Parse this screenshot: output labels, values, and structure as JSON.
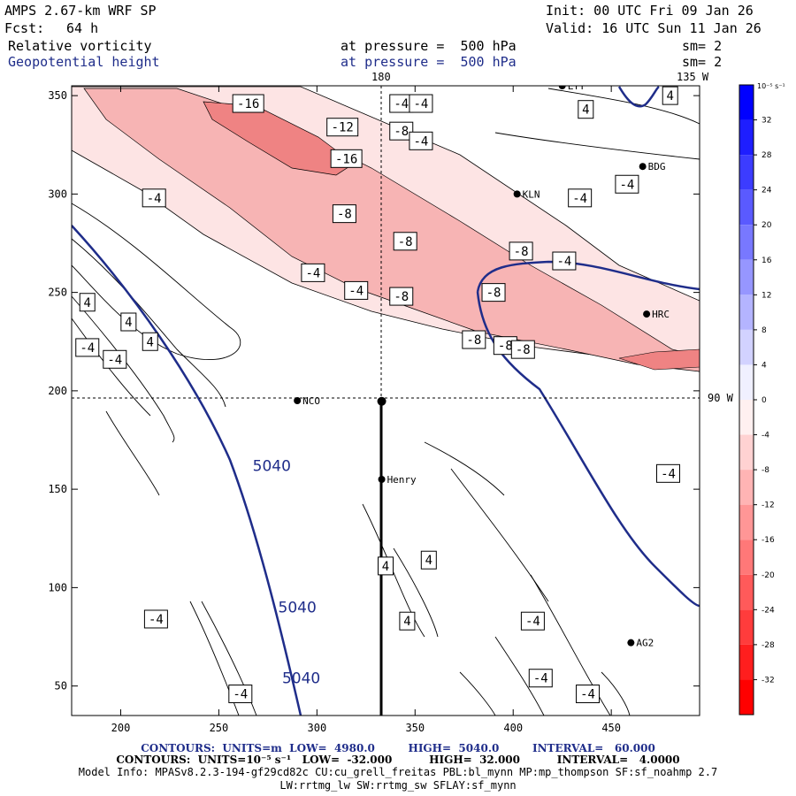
{
  "header": {
    "model": "AMPS 2.67-km WRF SP",
    "init": "Init: 00 UTC Fri 09 Jan 26",
    "fcst_label": "Fcst:",
    "fcst_value": "64 h",
    "valid": "Valid: 16 UTC Sun 11 Jan 26",
    "field1": "Relative vorticity",
    "field2": "Geopotential height",
    "level1": "at pressure =  500 hPa",
    "level2": "at pressure =  500 hPa",
    "sm1": "sm= 2",
    "sm2": "sm= 2",
    "lon_180": "180",
    "lon_135": "135 W",
    "lon_90": "90 W"
  },
  "footer": {
    "line1": "CONTOURS:  UNITS=m  LOW=  4980.0         HIGH=  5040.0         INTERVAL=   60.000",
    "line2": "CONTOURS:  UNITS=10⁻⁵ s⁻¹   LOW=  -32.000          HIGH=  32.000          INTERVAL=   4.0000",
    "line3": "Model Info: MPASv8.2.3-194-gf29cd82c CU:cu_grell_freitas PBL:bl_mynn MP:mp_thompson SF:sf_noahmp 2.7",
    "line4": "LW:rrtmg_lw SW:rrtmg_sw SFLAY:sf_mynn"
  },
  "colors": {
    "height_contour": "#1f2d8a",
    "vort_light": "#fde4e4",
    "vort_mid": "#f7b4b4",
    "vort_strong": "#ef8383"
  },
  "chart_data": {
    "type": "contour",
    "title": "Relative vorticity / Geopotential height at 500 hPa",
    "xlim": [
      175,
      495
    ],
    "ylim": [
      35,
      355
    ],
    "x_ticks": [
      "200",
      "250",
      "300",
      "350",
      "400",
      "450"
    ],
    "y_ticks": [
      "50",
      "100",
      "150",
      "200",
      "250",
      "300",
      "350"
    ],
    "height_labels": [
      {
        "text": "5040",
        "x": 277,
        "y": 162
      },
      {
        "text": "5040",
        "x": 290,
        "y": 90
      },
      {
        "text": "5040",
        "x": 292,
        "y": 54
      }
    ],
    "vort_labels": [
      {
        "text": "-16",
        "x": 265,
        "y": 346
      },
      {
        "text": "-12",
        "x": 313,
        "y": 334
      },
      {
        "text": "-16",
        "x": 315,
        "y": 318
      },
      {
        "text": "-4",
        "x": 343,
        "y": 346
      },
      {
        "text": "-4",
        "x": 353,
        "y": 346
      },
      {
        "text": "-8",
        "x": 343,
        "y": 332
      },
      {
        "text": "-4",
        "x": 353,
        "y": 327
      },
      {
        "text": "-4",
        "x": 217,
        "y": 298
      },
      {
        "text": "-8",
        "x": 314,
        "y": 290
      },
      {
        "text": "-8",
        "x": 345,
        "y": 276
      },
      {
        "text": "-8",
        "x": 404,
        "y": 271
      },
      {
        "text": "-4",
        "x": 426,
        "y": 266
      },
      {
        "text": "-4",
        "x": 298,
        "y": 260
      },
      {
        "text": "-4",
        "x": 320,
        "y": 251
      },
      {
        "text": "-8",
        "x": 343,
        "y": 248
      },
      {
        "text": "-8",
        "x": 390,
        "y": 250
      },
      {
        "text": "-8",
        "x": 380,
        "y": 226
      },
      {
        "text": "-8",
        "x": 396,
        "y": 223
      },
      {
        "text": "-8",
        "x": 405,
        "y": 221
      },
      {
        "text": "-4",
        "x": 183,
        "y": 222
      },
      {
        "text": "-4",
        "x": 197,
        "y": 216
      },
      {
        "text": "-4",
        "x": 218,
        "y": 84
      },
      {
        "text": "-4",
        "x": 261,
        "y": 46
      },
      {
        "text": "-4",
        "x": 410,
        "y": 83
      },
      {
        "text": "-4",
        "x": 414,
        "y": 54
      },
      {
        "text": "-4",
        "x": 438,
        "y": 46
      },
      {
        "text": "-4",
        "x": 458,
        "y": 305
      },
      {
        "text": "-4",
        "x": 434,
        "y": 298
      },
      {
        "text": "-4",
        "x": 479,
        "y": 158
      },
      {
        "text": "4",
        "x": 437,
        "y": 343
      },
      {
        "text": "4",
        "x": 480,
        "y": 350
      },
      {
        "text": "4",
        "x": 183,
        "y": 245
      },
      {
        "text": "4",
        "x": 204,
        "y": 235
      },
      {
        "text": "4",
        "x": 215,
        "y": 225
      },
      {
        "text": "4",
        "x": 335,
        "y": 111
      },
      {
        "text": "4",
        "x": 357,
        "y": 114
      },
      {
        "text": "4",
        "x": 346,
        "y": 83
      }
    ],
    "stations": [
      {
        "text": "LYT",
        "x": 425,
        "y": 355
      },
      {
        "text": "BDG",
        "x": 466,
        "y": 314
      },
      {
        "text": "KLN",
        "x": 402,
        "y": 300
      },
      {
        "text": "HRC",
        "x": 468,
        "y": 239
      },
      {
        "text": "NCO",
        "x": 290,
        "y": 195
      },
      {
        "text": "Henry",
        "x": 333,
        "y": 155
      },
      {
        "text": "AG2",
        "x": 460,
        "y": 72
      }
    ],
    "colorbar": {
      "unit_label": "10⁻⁵ s⁻¹",
      "ticks": [
        "32",
        "28",
        "24",
        "20",
        "16",
        "12",
        "8",
        "4",
        "0",
        "-4",
        "-8",
        "-12",
        "-16",
        "-20",
        "-24",
        "-28",
        "-32"
      ],
      "range": [
        -36,
        36
      ]
    },
    "cross_section": {
      "lon_line_x": 333,
      "lat_line_y": 196
    }
  }
}
